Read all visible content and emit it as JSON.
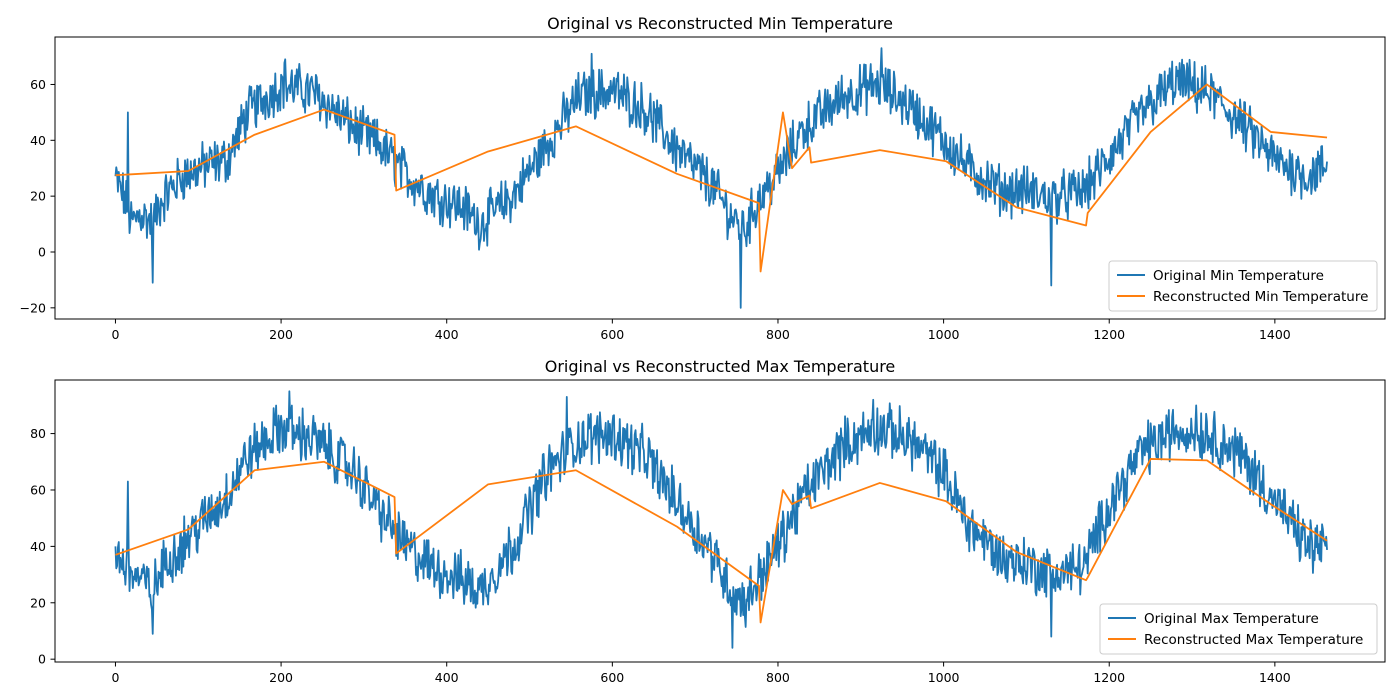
{
  "chart_data": [
    {
      "type": "line",
      "title": "Original vs Reconstructed Min Temperature",
      "xlabel": "",
      "ylabel": "",
      "xlim": [
        -73,
        1533
      ],
      "ylim": [
        -24,
        77
      ],
      "xticks": [
        0,
        200,
        400,
        600,
        800,
        1000,
        1200,
        1400
      ],
      "yticks": [
        -20,
        0,
        20,
        40,
        60
      ],
      "grid": false,
      "legend": "lower-right",
      "series": [
        {
          "name": "Original Min Temperature",
          "color": "#1f77b4",
          "style": "noisy",
          "anchors": [
            [
              0,
              26
            ],
            [
              10,
              20
            ],
            [
              20,
              10
            ],
            [
              30,
              14
            ],
            [
              45,
              10
            ],
            [
              55,
              18
            ],
            [
              80,
              27
            ],
            [
              110,
              31
            ],
            [
              135,
              33
            ],
            [
              160,
              50
            ],
            [
              200,
              60
            ],
            [
              240,
              57
            ],
            [
              290,
              44
            ],
            [
              320,
              38
            ],
            [
              350,
              28
            ],
            [
              380,
              21
            ],
            [
              420,
              16
            ],
            [
              440,
              10
            ],
            [
              480,
              20
            ],
            [
              520,
              38
            ],
            [
              560,
              56
            ],
            [
              600,
              58
            ],
            [
              640,
              51
            ],
            [
              680,
              36
            ],
            [
              720,
              24
            ],
            [
              745,
              12
            ],
            [
              760,
              8
            ],
            [
              775,
              18
            ],
            [
              800,
              28
            ],
            [
              830,
              44
            ],
            [
              880,
              56
            ],
            [
              920,
              60
            ],
            [
              960,
              52
            ],
            [
              1000,
              40
            ],
            [
              1030,
              30
            ],
            [
              1070,
              22
            ],
            [
              1100,
              22
            ],
            [
              1130,
              19
            ],
            [
              1170,
              22
            ],
            [
              1200,
              34
            ],
            [
              1240,
              50
            ],
            [
              1280,
              61
            ],
            [
              1320,
              57
            ],
            [
              1360,
              46
            ],
            [
              1400,
              33
            ],
            [
              1440,
              27
            ],
            [
              1463,
              31
            ]
          ],
          "spikes": [
            [
              15,
              50
            ],
            [
              45,
              -11
            ],
            [
              755,
              -20
            ],
            [
              1130,
              -12
            ],
            [
              925,
              73
            ],
            [
              205,
              69
            ],
            [
              1290,
              67
            ],
            [
              575,
              71
            ]
          ],
          "amplitude": 7.5
        },
        {
          "name": "Reconstructed Min Temperature",
          "color": "#ff7f0e",
          "x": [
            0,
            88,
            168,
            252,
            337,
            339,
            450,
            556,
            678,
            777,
            779,
            806,
            817,
            838,
            840,
            923,
            1003,
            1088,
            1172,
            1174,
            1250,
            1318,
            1395,
            1463
          ],
          "y": [
            27.5,
            29,
            42,
            51,
            42,
            22,
            36,
            45,
            28,
            17.5,
            -7,
            50,
            30,
            37.5,
            32,
            36.5,
            32.5,
            16,
            9.5,
            14,
            43,
            60,
            43,
            41
          ]
        }
      ]
    },
    {
      "type": "line",
      "title": "Original vs Reconstructed Max Temperature",
      "xlabel": "",
      "ylabel": "",
      "xlim": [
        -73,
        1533
      ],
      "ylim": [
        -1,
        99
      ],
      "xticks": [
        0,
        200,
        400,
        600,
        800,
        1000,
        1200,
        1400
      ],
      "yticks": [
        0,
        20,
        40,
        60,
        80
      ],
      "grid": false,
      "legend": "lower-right",
      "series": [
        {
          "name": "Original Max Temperature",
          "color": "#1f77b4",
          "style": "noisy",
          "anchors": [
            [
              0,
              38
            ],
            [
              15,
              32
            ],
            [
              30,
              28
            ],
            [
              45,
              24
            ],
            [
              60,
              34
            ],
            [
              90,
              44
            ],
            [
              130,
              56
            ],
            [
              160,
              72
            ],
            [
              200,
              82
            ],
            [
              240,
              78
            ],
            [
              290,
              66
            ],
            [
              320,
              52
            ],
            [
              350,
              40
            ],
            [
              380,
              33
            ],
            [
              420,
              28
            ],
            [
              440,
              24
            ],
            [
              480,
              40
            ],
            [
              520,
              66
            ],
            [
              560,
              78
            ],
            [
              600,
              80
            ],
            [
              640,
              72
            ],
            [
              680,
              55
            ],
            [
              720,
              38
            ],
            [
              745,
              24
            ],
            [
              760,
              20
            ],
            [
              775,
              28
            ],
            [
              800,
              40
            ],
            [
              830,
              58
            ],
            [
              880,
              76
            ],
            [
              920,
              82
            ],
            [
              960,
              78
            ],
            [
              1000,
              66
            ],
            [
              1030,
              48
            ],
            [
              1070,
              36
            ],
            [
              1100,
              34
            ],
            [
              1130,
              30
            ],
            [
              1170,
              33
            ],
            [
              1200,
              55
            ],
            [
              1240,
              74
            ],
            [
              1280,
              81
            ],
            [
              1320,
              80
            ],
            [
              1360,
              72
            ],
            [
              1400,
              56
            ],
            [
              1440,
              40
            ],
            [
              1463,
              40
            ]
          ],
          "spikes": [
            [
              15,
              63
            ],
            [
              45,
              9
            ],
            [
              745,
              4
            ],
            [
              1130,
              8
            ],
            [
              210,
              95
            ],
            [
              545,
              93
            ],
            [
              915,
              92
            ],
            [
              1305,
              90
            ]
          ],
          "amplitude": 8
        },
        {
          "name": "Reconstructed Max Temperature",
          "color": "#ff7f0e",
          "x": [
            0,
            88,
            168,
            252,
            337,
            339,
            450,
            556,
            678,
            777,
            779,
            806,
            817,
            838,
            840,
            923,
            1003,
            1088,
            1172,
            1174,
            1250,
            1318,
            1395,
            1463
          ],
          "y": [
            37,
            46,
            67,
            70,
            57.5,
            37.5,
            62,
            67,
            47,
            26,
            13,
            60,
            55,
            58,
            53.5,
            62.5,
            56,
            38,
            28,
            29,
            71,
            70.5,
            55,
            42
          ]
        }
      ]
    }
  ]
}
